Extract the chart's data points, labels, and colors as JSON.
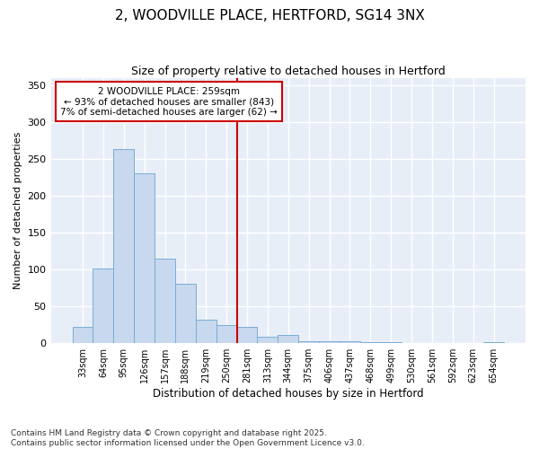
{
  "title": "2, WOODVILLE PLACE, HERTFORD, SG14 3NX",
  "subtitle": "Size of property relative to detached houses in Hertford",
  "xlabel": "Distribution of detached houses by size in Hertford",
  "ylabel": "Number of detached properties",
  "categories": [
    "33sqm",
    "64sqm",
    "95sqm",
    "126sqm",
    "157sqm",
    "188sqm",
    "219sqm",
    "250sqm",
    "281sqm",
    "313sqm",
    "344sqm",
    "375sqm",
    "406sqm",
    "437sqm",
    "468sqm",
    "499sqm",
    "530sqm",
    "561sqm",
    "592sqm",
    "623sqm",
    "654sqm"
  ],
  "values": [
    22,
    101,
    263,
    231,
    115,
    81,
    32,
    25,
    22,
    9,
    11,
    3,
    3,
    3,
    1,
    2,
    0,
    0,
    0,
    0,
    2
  ],
  "bar_color": "#c8d8ee",
  "bar_edge_color": "#7aadd4",
  "vline_x": 7.5,
  "vline_color": "#cc0000",
  "annotation_title": "2 WOODVILLE PLACE: 259sqm",
  "annotation_line1": "← 93% of detached houses are smaller (843)",
  "annotation_line2": "7% of semi-detached houses are larger (62) →",
  "ylim": [
    0,
    360
  ],
  "yticks": [
    0,
    50,
    100,
    150,
    200,
    250,
    300,
    350
  ],
  "footer": "Contains HM Land Registry data © Crown copyright and database right 2025.\nContains public sector information licensed under the Open Government Licence v3.0.",
  "bg_color": "#ffffff",
  "plot_bg_color": "#e8eef8",
  "grid_color": "#ffffff"
}
